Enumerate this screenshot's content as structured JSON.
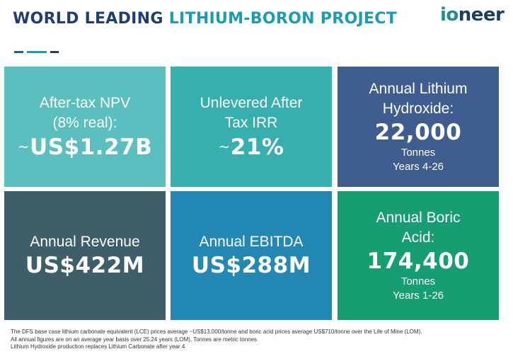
{
  "header": {
    "title_part1": "WORLD LEADING ",
    "title_part2": "LITHIUM-BORON PROJECT",
    "logo_prefix": "io",
    "logo_suffix": "neer"
  },
  "colors": {
    "dash_1": "#2a5a8c",
    "dash_2": "#1c9cb1",
    "dash_3": "#1f3f6e"
  },
  "tiles": {
    "npv": {
      "color": "#5bbfbf",
      "line1": "After-tax NPV",
      "line2": "(8% real):",
      "prefix": "~",
      "value": "US$1.27B"
    },
    "irr": {
      "color": "#37afaf",
      "line1": "Unlevered After",
      "line2": "Tax IRR",
      "prefix": "~",
      "value": "21%"
    },
    "lithium": {
      "color": "#3f5e8f",
      "line1": "Annual Lithium",
      "line2": "Hydroxide:",
      "value": "22,000",
      "unit": "Tonnes",
      "years": "Years 4-26"
    },
    "revenue": {
      "color": "#3e5f69",
      "label": "Annual Revenue",
      "value": "US$422M"
    },
    "ebitda": {
      "color": "#2488b5",
      "label": "Annual EBITDA",
      "value": "US$288M"
    },
    "boric": {
      "color": "#169e72",
      "line1": "Annual Boric",
      "line2": "Acid:",
      "value": "174,400",
      "unit": "Tonnes",
      "years": "Years 1-26"
    }
  },
  "footer": {
    "line1": "The DFS base case lithium carbonate equivalent (LCE) prices average ~US$13,000/tonne and boric acid prices average US$710/tonne over the Life of Mine (LOM).",
    "line2": "All annual figures are on an average year basis over 25.24 years (LOM), Tonnes are metric tonnes",
    "line3": "Lithium Hydroxide production replaces Lithium Carbonate after year 4"
  }
}
